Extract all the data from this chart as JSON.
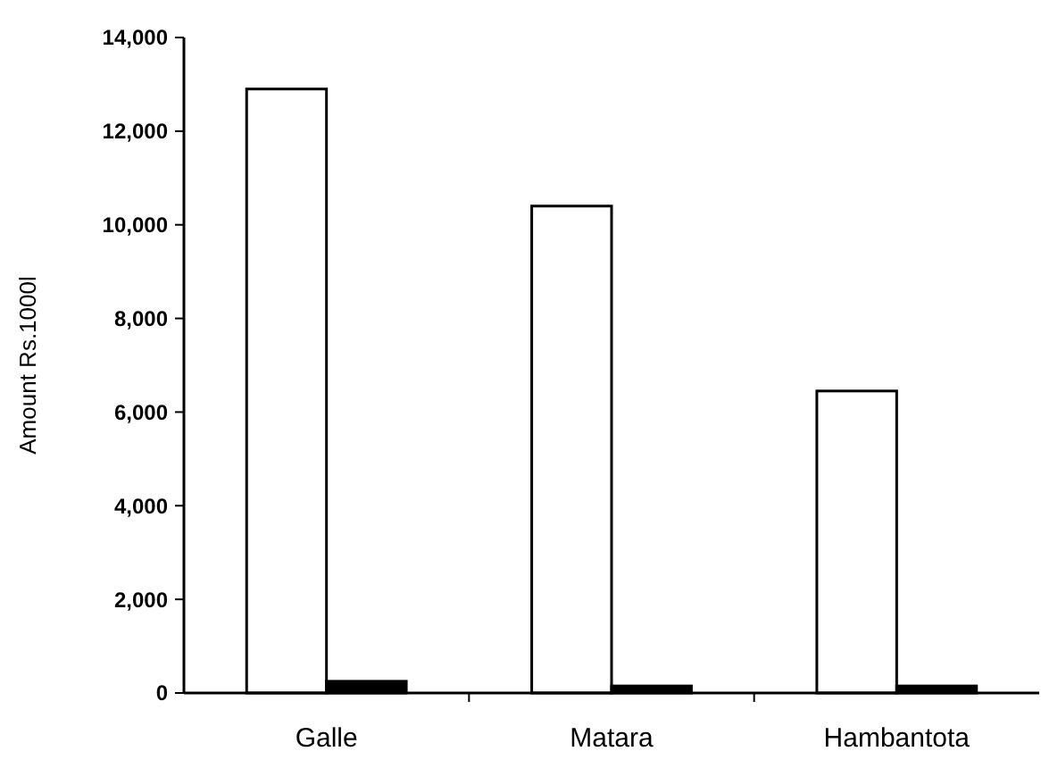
{
  "chart_data": {
    "type": "bar",
    "ylabel": "Amount Rs.1000l",
    "categories": [
      "Galle",
      "Matara",
      "Hambantota"
    ],
    "series": [
      {
        "color": "#ffffff",
        "values": [
          12900,
          10400,
          6450
        ]
      },
      {
        "color": "#000000",
        "values": [
          250,
          150,
          150
        ]
      }
    ],
    "ylim": [
      0,
      14000
    ],
    "yticks": [
      {
        "value": 0,
        "label": "0"
      },
      {
        "value": 2000,
        "label": "2,000"
      },
      {
        "value": 4000,
        "label": "4,000"
      },
      {
        "value": 6000,
        "label": "6,000"
      },
      {
        "value": 8000,
        "label": "8,000"
      },
      {
        "value": 10000,
        "label": "10,000"
      },
      {
        "value": 12000,
        "label": "12,000"
      },
      {
        "value": 14000,
        "label": "14,000"
      }
    ],
    "grid": false
  }
}
